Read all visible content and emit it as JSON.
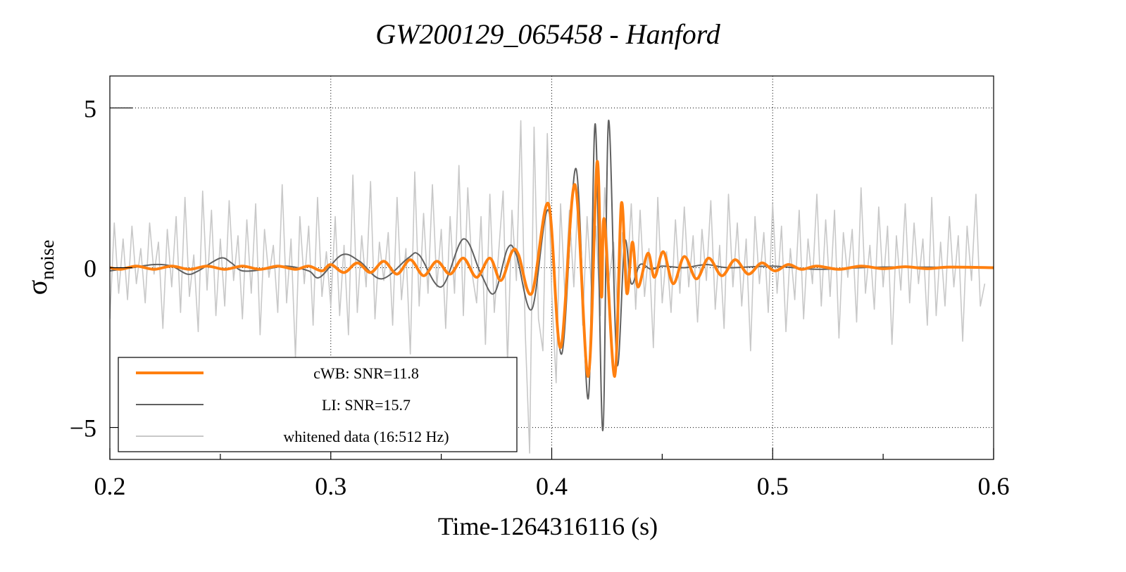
{
  "chart_data": {
    "type": "line",
    "title": "GW200129_065458 - Hanford",
    "xlabel": "Time-1264316116 (s)",
    "ylabel": "σ",
    "ylabel_sub": "noise",
    "xlim": [
      0.2,
      0.6
    ],
    "ylim": [
      -6,
      6
    ],
    "xticks": [
      0.2,
      0.3,
      0.4,
      0.5,
      0.6
    ],
    "xtick_labels": [
      "0.2",
      "0.3",
      "0.4",
      "0.5",
      "0.6"
    ],
    "yticks": [
      -5,
      0,
      5
    ],
    "ytick_labels": [
      "−5",
      "0",
      "5"
    ],
    "grid": true,
    "legend_position": "bottom-left",
    "series": [
      {
        "name": "whitened data (16:512 Hz)",
        "color": "#c8c8c8",
        "x_start": 0.2,
        "x_step": 0.002,
        "y": [
          -1.6,
          1.4,
          -0.8,
          0.9,
          -1.0,
          1.3,
          -0.5,
          0.6,
          -1.1,
          1.4,
          -0.2,
          0.8,
          -1.9,
          1.2,
          -0.6,
          1.6,
          -1.4,
          2.2,
          -0.9,
          0.4,
          -2.0,
          2.4,
          -0.7,
          1.8,
          -1.5,
          0.9,
          -1.2,
          2.1,
          -0.4,
          1.0,
          -1.6,
          1.5,
          -0.8,
          2.0,
          -2.1,
          1.2,
          -0.3,
          0.7,
          -1.4,
          2.6,
          -1.1,
          0.9,
          -2.8,
          1.6,
          -0.5,
          1.3,
          -1.8,
          2.2,
          -0.9,
          0.5,
          -1.2,
          1.6,
          -1.5,
          0.7,
          -2.1,
          2.9,
          -1.4,
          1.0,
          -0.6,
          2.7,
          -1.6,
          0.8,
          -0.4,
          1.1,
          -1.8,
          2.2,
          -1.0,
          0.6,
          -2.7,
          3.0,
          -1.2,
          1.7,
          -0.8,
          2.6,
          -0.6,
          1.2,
          -1.9,
          1.6,
          -0.8,
          3.2,
          -1.5,
          2.5,
          -0.2,
          -1.1,
          1.6,
          -2.4,
          2.3,
          -1.4,
          0.5,
          2.4,
          -3.0,
          1.8,
          -0.4,
          4.6,
          -2.0,
          -5.8,
          4.4,
          -1.6,
          -2.6,
          4.2,
          -0.8,
          -3.6,
          2.0,
          -0.9,
          1.8,
          -0.6,
          2.4,
          -1.8,
          1.6,
          -0.7,
          1.3,
          -1.5,
          2.5,
          -0.4,
          0.8,
          -1.6,
          1.1,
          -0.5,
          2.0,
          -1.3,
          1.8,
          -0.9,
          0.6,
          -2.5,
          2.2,
          -1.1,
          0.5,
          -1.4,
          1.5,
          -0.8,
          1.9,
          -0.6,
          1.0,
          -1.7,
          1.2,
          -0.4,
          2.1,
          -1.3,
          0.7,
          -1.9,
          2.3,
          -0.6,
          1.4,
          -1.2,
          0.9,
          -2.6,
          1.6,
          -0.5,
          1.1,
          -1.4,
          2.0,
          -0.8,
          1.3,
          -2.0,
          0.6,
          -1.0,
          1.8,
          -1.6,
          0.9,
          -0.5,
          2.3,
          -1.2,
          1.5,
          -0.9,
          1.8,
          -2.2,
          1.1,
          -0.3,
          1.2,
          -1.7,
          2.5,
          -0.8,
          0.7,
          -1.3,
          1.9,
          -0.6,
          1.3,
          -2.4,
          1.0,
          -0.7,
          2.0,
          -1.1,
          1.4,
          -0.5,
          0.9,
          -1.8,
          2.2,
          -1.5,
          0.8,
          -1.2,
          1.6,
          -0.6,
          1.0,
          -2.3,
          1.3,
          -0.4,
          2.3,
          -1.2,
          -0.5
        ]
      },
      {
        "name": "LI: SNR=15.7",
        "color": "#606060",
        "points": [
          [
            0.2,
            -0.1
          ],
          [
            0.21,
            0.0
          ],
          [
            0.22,
            0.1
          ],
          [
            0.228,
            0.05
          ],
          [
            0.235,
            -0.2
          ],
          [
            0.24,
            -0.1
          ],
          [
            0.25,
            0.3
          ],
          [
            0.255,
            0.15
          ],
          [
            0.26,
            -0.1
          ],
          [
            0.27,
            -0.05
          ],
          [
            0.28,
            0.05
          ],
          [
            0.29,
            -0.1
          ],
          [
            0.295,
            -0.3
          ],
          [
            0.305,
            0.4
          ],
          [
            0.313,
            0.2
          ],
          [
            0.323,
            -0.35
          ],
          [
            0.335,
            0.3
          ],
          [
            0.34,
            0.4
          ],
          [
            0.35,
            -0.6
          ],
          [
            0.36,
            0.9
          ],
          [
            0.368,
            -0.2
          ],
          [
            0.374,
            -0.8
          ],
          [
            0.38,
            0.6
          ],
          [
            0.384,
            0.4
          ],
          [
            0.391,
            -1.3
          ],
          [
            0.3985,
            1.8
          ],
          [
            0.4045,
            -2.7
          ],
          [
            0.411,
            3.1
          ],
          [
            0.4165,
            -4.1
          ],
          [
            0.4197,
            4.5
          ],
          [
            0.4231,
            -5.1
          ],
          [
            0.4257,
            4.6
          ],
          [
            0.4295,
            -3.0
          ],
          [
            0.433,
            0.8
          ],
          [
            0.436,
            -0.5
          ],
          [
            0.44,
            0.1
          ],
          [
            0.445,
            -0.05
          ],
          [
            0.45,
            0.05
          ],
          [
            0.46,
            0.0
          ],
          [
            0.47,
            0.1
          ],
          [
            0.48,
            0.0
          ],
          [
            0.5,
            0.05
          ],
          [
            0.52,
            -0.05
          ],
          [
            0.55,
            0.02
          ],
          [
            0.6,
            0.0
          ]
        ]
      },
      {
        "name": "cWB: SNR=11.8",
        "color": "#ff8010",
        "points": [
          [
            0.2,
            0.0
          ],
          [
            0.205,
            -0.05
          ],
          [
            0.212,
            0.05
          ],
          [
            0.22,
            -0.05
          ],
          [
            0.228,
            0.05
          ],
          [
            0.236,
            -0.05
          ],
          [
            0.244,
            0.05
          ],
          [
            0.252,
            -0.05
          ],
          [
            0.26,
            0.05
          ],
          [
            0.268,
            -0.05
          ],
          [
            0.276,
            0.05
          ],
          [
            0.284,
            -0.05
          ],
          [
            0.29,
            0.05
          ],
          [
            0.296,
            -0.1
          ],
          [
            0.3,
            0.1
          ],
          [
            0.306,
            -0.15
          ],
          [
            0.312,
            0.15
          ],
          [
            0.318,
            -0.15
          ],
          [
            0.324,
            0.2
          ],
          [
            0.33,
            -0.2
          ],
          [
            0.336,
            0.25
          ],
          [
            0.342,
            -0.25
          ],
          [
            0.348,
            0.2
          ],
          [
            0.354,
            -0.2
          ],
          [
            0.36,
            0.3
          ],
          [
            0.366,
            -0.3
          ],
          [
            0.372,
            0.3
          ],
          [
            0.377,
            -0.4
          ],
          [
            0.382,
            0.5
          ],
          [
            0.385,
            0.4
          ],
          [
            0.391,
            -0.8
          ],
          [
            0.3985,
            2.0
          ],
          [
            0.404,
            -2.5
          ],
          [
            0.4105,
            2.6
          ],
          [
            0.4165,
            -3.4
          ],
          [
            0.4205,
            3.3
          ],
          [
            0.4225,
            -0.9
          ],
          [
            0.4238,
            1.5
          ],
          [
            0.4285,
            -3.4
          ],
          [
            0.4315,
            2.0
          ],
          [
            0.434,
            -0.8
          ],
          [
            0.4365,
            0.8
          ],
          [
            0.439,
            -0.6
          ],
          [
            0.4435,
            0.45
          ],
          [
            0.4465,
            -0.3
          ],
          [
            0.4505,
            0.5
          ],
          [
            0.455,
            -0.5
          ],
          [
            0.46,
            0.35
          ],
          [
            0.4655,
            -0.35
          ],
          [
            0.471,
            0.3
          ],
          [
            0.477,
            -0.25
          ],
          [
            0.483,
            0.25
          ],
          [
            0.489,
            -0.2
          ],
          [
            0.495,
            0.15
          ],
          [
            0.501,
            -0.1
          ],
          [
            0.507,
            0.1
          ],
          [
            0.513,
            -0.05
          ],
          [
            0.52,
            0.05
          ],
          [
            0.53,
            -0.05
          ],
          [
            0.54,
            0.05
          ],
          [
            0.55,
            -0.03
          ],
          [
            0.56,
            0.03
          ],
          [
            0.57,
            -0.03
          ],
          [
            0.58,
            0.02
          ],
          [
            0.6,
            0.0
          ]
        ]
      }
    ],
    "legend": [
      "cWB: SNR=11.8",
      "LI: SNR=15.7",
      "whitened data (16:512 Hz)"
    ]
  }
}
